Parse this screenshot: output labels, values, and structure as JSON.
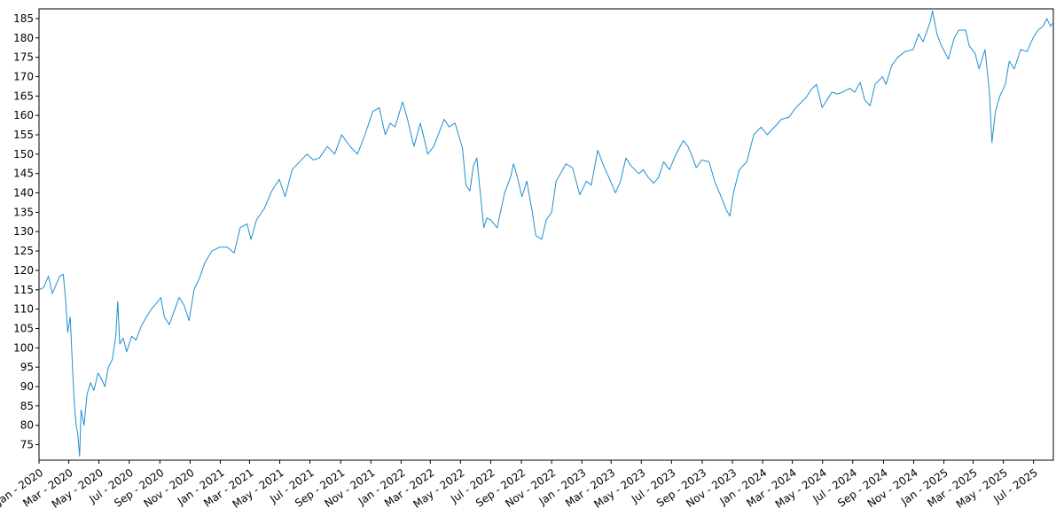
{
  "chart_data": {
    "type": "line",
    "title": "",
    "xlabel": "",
    "ylabel": "",
    "x_range": [
      "2020-01-01",
      "2025-08-10"
    ],
    "ylim": [
      71,
      187.5
    ],
    "y_ticks": [
      75,
      80,
      85,
      90,
      95,
      100,
      105,
      110,
      115,
      120,
      125,
      130,
      135,
      140,
      145,
      150,
      155,
      160,
      165,
      170,
      175,
      180,
      185
    ],
    "x_ticks": [
      {
        "date": "2020-01-01",
        "label": "Jan - 2020"
      },
      {
        "date": "2020-03-01",
        "label": "Mar - 2020"
      },
      {
        "date": "2020-05-01",
        "label": "May - 2020"
      },
      {
        "date": "2020-07-01",
        "label": "Jul - 2020"
      },
      {
        "date": "2020-09-01",
        "label": "Sep - 2020"
      },
      {
        "date": "2020-11-01",
        "label": "Nov - 2020"
      },
      {
        "date": "2021-01-01",
        "label": "Jan - 2021"
      },
      {
        "date": "2021-03-01",
        "label": "Mar - 2021"
      },
      {
        "date": "2021-05-01",
        "label": "May - 2021"
      },
      {
        "date": "2021-07-01",
        "label": "Jul - 2021"
      },
      {
        "date": "2021-09-01",
        "label": "Sep - 2021"
      },
      {
        "date": "2021-11-01",
        "label": "Nov - 2021"
      },
      {
        "date": "2022-01-01",
        "label": "Jan - 2022"
      },
      {
        "date": "2022-03-01",
        "label": "Mar - 2022"
      },
      {
        "date": "2022-05-01",
        "label": "May - 2022"
      },
      {
        "date": "2022-07-01",
        "label": "Jul - 2022"
      },
      {
        "date": "2022-09-01",
        "label": "Sep - 2022"
      },
      {
        "date": "2022-11-01",
        "label": "Nov - 2022"
      },
      {
        "date": "2023-01-01",
        "label": "Jan - 2023"
      },
      {
        "date": "2023-03-01",
        "label": "Mar - 2023"
      },
      {
        "date": "2023-05-01",
        "label": "May - 2023"
      },
      {
        "date": "2023-07-01",
        "label": "Jul - 2023"
      },
      {
        "date": "2023-09-01",
        "label": "Sep - 2023"
      },
      {
        "date": "2023-11-01",
        "label": "Nov - 2023"
      },
      {
        "date": "2024-01-01",
        "label": "Jan - 2024"
      },
      {
        "date": "2024-03-01",
        "label": "Mar - 2024"
      },
      {
        "date": "2024-05-01",
        "label": "May - 2024"
      },
      {
        "date": "2024-07-01",
        "label": "Jul - 2024"
      },
      {
        "date": "2024-09-01",
        "label": "Sep - 2024"
      },
      {
        "date": "2024-11-01",
        "label": "Nov - 2024"
      },
      {
        "date": "2025-01-01",
        "label": "Jan - 2025"
      },
      {
        "date": "2025-03-01",
        "label": "Mar - 2025"
      },
      {
        "date": "2025-05-01",
        "label": "May - 2025"
      },
      {
        "date": "2025-07-01",
        "label": "Jul - 2025"
      }
    ],
    "grid": false,
    "legend": "none",
    "line_color": "#1f8fd0",
    "series": [
      {
        "points": [
          [
            "2020-01-01",
            115.0
          ],
          [
            "2020-01-10",
            115.5
          ],
          [
            "2020-01-20",
            118.5
          ],
          [
            "2020-01-28",
            114.0
          ],
          [
            "2020-02-05",
            116.5
          ],
          [
            "2020-02-12",
            118.5
          ],
          [
            "2020-02-19",
            119.0
          ],
          [
            "2020-02-24",
            112.0
          ],
          [
            "2020-02-28",
            104.0
          ],
          [
            "2020-03-04",
            108.0
          ],
          [
            "2020-03-09",
            94.0
          ],
          [
            "2020-03-12",
            86.0
          ],
          [
            "2020-03-16",
            80.0
          ],
          [
            "2020-03-19",
            78.0
          ],
          [
            "2020-03-23",
            72.0
          ],
          [
            "2020-03-26",
            84.0
          ],
          [
            "2020-04-01",
            80.0
          ],
          [
            "2020-04-07",
            88.0
          ],
          [
            "2020-04-14",
            91.0
          ],
          [
            "2020-04-21",
            89.0
          ],
          [
            "2020-04-29",
            93.5
          ],
          [
            "2020-05-06",
            92.0
          ],
          [
            "2020-05-13",
            90.0
          ],
          [
            "2020-05-20",
            95.0
          ],
          [
            "2020-05-28",
            97.0
          ],
          [
            "2020-06-04",
            103.0
          ],
          [
            "2020-06-08",
            112.0
          ],
          [
            "2020-06-12",
            101.0
          ],
          [
            "2020-06-19",
            102.5
          ],
          [
            "2020-06-26",
            99.0
          ],
          [
            "2020-07-06",
            103.0
          ],
          [
            "2020-07-15",
            102.0
          ],
          [
            "2020-07-25",
            105.5
          ],
          [
            "2020-08-05",
            108.0
          ],
          [
            "2020-08-15",
            110.0
          ],
          [
            "2020-08-25",
            111.5
          ],
          [
            "2020-09-03",
            113.0
          ],
          [
            "2020-09-10",
            108.0
          ],
          [
            "2020-09-20",
            106.0
          ],
          [
            "2020-09-30",
            109.5
          ],
          [
            "2020-10-10",
            113.0
          ],
          [
            "2020-10-20",
            111.0
          ],
          [
            "2020-10-30",
            107.0
          ],
          [
            "2020-11-09",
            115.0
          ],
          [
            "2020-11-20",
            118.0
          ],
          [
            "2020-12-01",
            122.0
          ],
          [
            "2020-12-15",
            125.0
          ],
          [
            "2020-12-31",
            126.0
          ],
          [
            "2021-01-15",
            126.0
          ],
          [
            "2021-01-29",
            124.5
          ],
          [
            "2021-02-10",
            131.0
          ],
          [
            "2021-02-24",
            132.0
          ],
          [
            "2021-03-04",
            128.0
          ],
          [
            "2021-03-15",
            133.0
          ],
          [
            "2021-03-31",
            136.0
          ],
          [
            "2021-04-15",
            140.5
          ],
          [
            "2021-04-30",
            143.5
          ],
          [
            "2021-05-12",
            139.0
          ],
          [
            "2021-05-26",
            146.0
          ],
          [
            "2021-06-10",
            148.0
          ],
          [
            "2021-06-25",
            150.0
          ],
          [
            "2021-07-08",
            148.5
          ],
          [
            "2021-07-20",
            149.0
          ],
          [
            "2021-08-05",
            152.0
          ],
          [
            "2021-08-20",
            150.0
          ],
          [
            "2021-09-03",
            155.0
          ],
          [
            "2021-09-20",
            152.0
          ],
          [
            "2021-10-05",
            150.0
          ],
          [
            "2021-10-20",
            155.0
          ],
          [
            "2021-11-05",
            161.0
          ],
          [
            "2021-11-18",
            162.0
          ],
          [
            "2021-11-30",
            155.0
          ],
          [
            "2021-12-10",
            158.0
          ],
          [
            "2021-12-20",
            157.0
          ],
          [
            "2022-01-04",
            163.5
          ],
          [
            "2022-01-14",
            159.0
          ],
          [
            "2022-01-27",
            152.0
          ],
          [
            "2022-02-09",
            158.0
          ],
          [
            "2022-02-24",
            150.0
          ],
          [
            "2022-03-08",
            152.0
          ],
          [
            "2022-03-29",
            159.0
          ],
          [
            "2022-04-08",
            157.0
          ],
          [
            "2022-04-20",
            158.0
          ],
          [
            "2022-05-05",
            151.5
          ],
          [
            "2022-05-12",
            142.0
          ],
          [
            "2022-05-20",
            140.5
          ],
          [
            "2022-05-27",
            147.0
          ],
          [
            "2022-06-03",
            149.0
          ],
          [
            "2022-06-10",
            140.0
          ],
          [
            "2022-06-17",
            131.0
          ],
          [
            "2022-06-23",
            133.5
          ],
          [
            "2022-07-01",
            133.0
          ],
          [
            "2022-07-14",
            131.0
          ],
          [
            "2022-07-29",
            140.0
          ],
          [
            "2022-08-10",
            144.0
          ],
          [
            "2022-08-16",
            147.5
          ],
          [
            "2022-08-24",
            144.0
          ],
          [
            "2022-09-02",
            139.0
          ],
          [
            "2022-09-12",
            143.0
          ],
          [
            "2022-09-23",
            135.0
          ],
          [
            "2022-09-30",
            129.0
          ],
          [
            "2022-10-12",
            128.0
          ],
          [
            "2022-10-21",
            133.0
          ],
          [
            "2022-11-01",
            135.0
          ],
          [
            "2022-11-10",
            143.0
          ],
          [
            "2022-11-30",
            147.5
          ],
          [
            "2022-12-13",
            146.5
          ],
          [
            "2022-12-28",
            139.5
          ],
          [
            "2023-01-10",
            143.0
          ],
          [
            "2023-01-20",
            142.0
          ],
          [
            "2023-02-02",
            151.0
          ],
          [
            "2023-02-14",
            147.0
          ],
          [
            "2023-02-28",
            143.0
          ],
          [
            "2023-03-10",
            140.0
          ],
          [
            "2023-03-20",
            143.0
          ],
          [
            "2023-03-31",
            149.0
          ],
          [
            "2023-04-10",
            147.0
          ],
          [
            "2023-04-26",
            145.0
          ],
          [
            "2023-05-05",
            146.0
          ],
          [
            "2023-05-15",
            144.0
          ],
          [
            "2023-05-26",
            142.5
          ],
          [
            "2023-06-05",
            144.0
          ],
          [
            "2023-06-15",
            148.0
          ],
          [
            "2023-06-27",
            146.0
          ],
          [
            "2023-07-10",
            150.0
          ],
          [
            "2023-07-25",
            153.5
          ],
          [
            "2023-08-03",
            152.0
          ],
          [
            "2023-08-10",
            150.0
          ],
          [
            "2023-08-20",
            146.5
          ],
          [
            "2023-08-31",
            148.5
          ],
          [
            "2023-09-15",
            148.0
          ],
          [
            "2023-09-26",
            143.0
          ],
          [
            "2023-10-06",
            140.0
          ],
          [
            "2023-10-20",
            135.5
          ],
          [
            "2023-10-27",
            134.0
          ],
          [
            "2023-11-03",
            140.0
          ],
          [
            "2023-11-15",
            146.0
          ],
          [
            "2023-11-30",
            148.0
          ],
          [
            "2023-12-14",
            155.0
          ],
          [
            "2023-12-29",
            157.0
          ],
          [
            "2024-01-10",
            155.0
          ],
          [
            "2024-01-25",
            157.0
          ],
          [
            "2024-02-08",
            159.0
          ],
          [
            "2024-02-23",
            159.5
          ],
          [
            "2024-03-08",
            162.0
          ],
          [
            "2024-03-28",
            164.5
          ],
          [
            "2024-04-10",
            167.0
          ],
          [
            "2024-04-19",
            168.0
          ],
          [
            "2024-04-30",
            162.0
          ],
          [
            "2024-05-10",
            164.0
          ],
          [
            "2024-05-20",
            166.0
          ],
          [
            "2024-05-31",
            165.5
          ],
          [
            "2024-06-10",
            166.0
          ],
          [
            "2024-06-25",
            167.0
          ],
          [
            "2024-07-05",
            166.0
          ],
          [
            "2024-07-16",
            168.5
          ],
          [
            "2024-07-25",
            164.0
          ],
          [
            "2024-08-05",
            162.5
          ],
          [
            "2024-08-15",
            168.0
          ],
          [
            "2024-08-30",
            170.0
          ],
          [
            "2024-09-06",
            168.0
          ],
          [
            "2024-09-18",
            173.0
          ],
          [
            "2024-09-30",
            175.0
          ],
          [
            "2024-10-15",
            176.5
          ],
          [
            "2024-10-31",
            177.0
          ],
          [
            "2024-11-11",
            181.0
          ],
          [
            "2024-11-20",
            179.0
          ],
          [
            "2024-12-04",
            184.0
          ],
          [
            "2024-12-09",
            187.0
          ],
          [
            "2024-12-18",
            181.0
          ],
          [
            "2024-12-27",
            178.0
          ],
          [
            "2025-01-10",
            174.5
          ],
          [
            "2025-01-22",
            180.0
          ],
          [
            "2025-01-31",
            182.0
          ],
          [
            "2025-02-14",
            182.0
          ],
          [
            "2025-02-21",
            178.0
          ],
          [
            "2025-03-05",
            176.0
          ],
          [
            "2025-03-13",
            172.0
          ],
          [
            "2025-03-25",
            177.0
          ],
          [
            "2025-04-03",
            166.0
          ],
          [
            "2025-04-08",
            153.0
          ],
          [
            "2025-04-15",
            161.0
          ],
          [
            "2025-04-24",
            165.0
          ],
          [
            "2025-05-05",
            168.0
          ],
          [
            "2025-05-13",
            174.0
          ],
          [
            "2025-05-23",
            172.0
          ],
          [
            "2025-06-05",
            177.0
          ],
          [
            "2025-06-18",
            176.5
          ],
          [
            "2025-06-30",
            180.0
          ],
          [
            "2025-07-10",
            182.0
          ],
          [
            "2025-07-20",
            183.0
          ],
          [
            "2025-07-28",
            185.0
          ],
          [
            "2025-08-04",
            183.0
          ],
          [
            "2025-08-10",
            184.0
          ]
        ]
      }
    ]
  }
}
